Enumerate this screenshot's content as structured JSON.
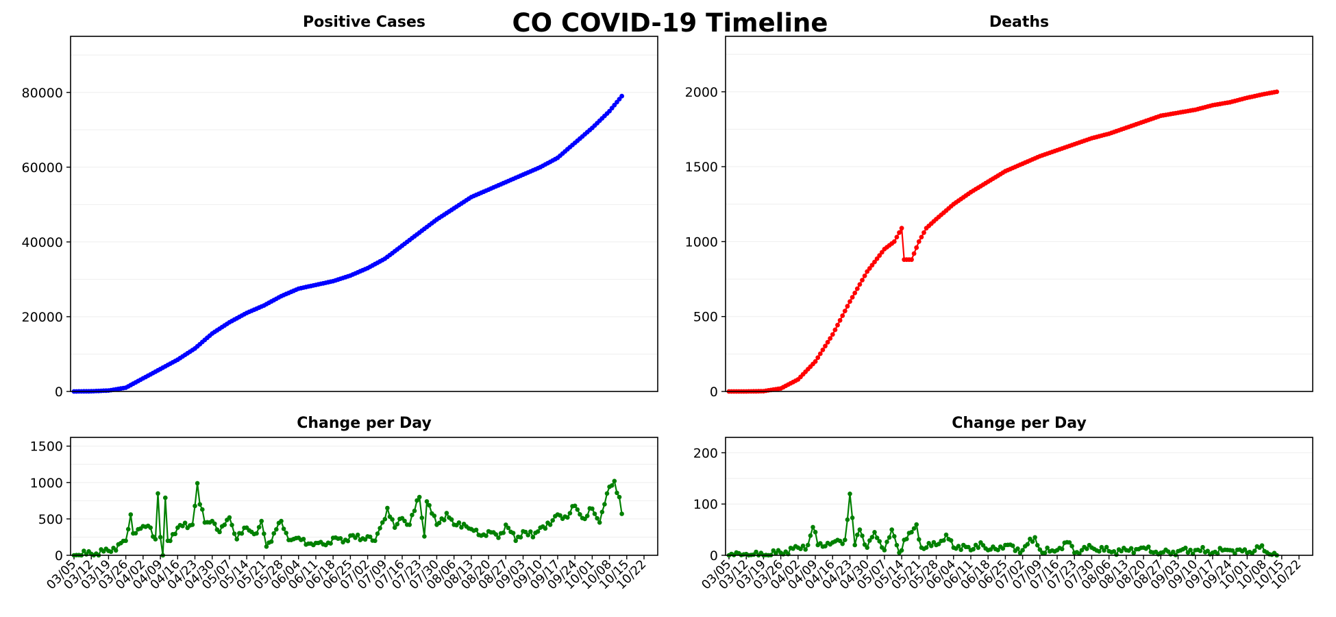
{
  "figure": {
    "title": "CO COVID-19 Timeline"
  },
  "chart_data": [
    {
      "id": "positive_cases",
      "type": "line",
      "title": "Positive Cases",
      "color": "#0000ff",
      "ylim": [
        0,
        95000
      ],
      "yticks": [
        0,
        20000,
        40000,
        60000,
        80000
      ],
      "grid": true,
      "x_start": "03/05",
      "x_end": "10/13",
      "anchors": [
        [
          "03/05",
          0
        ],
        [
          "03/12",
          50
        ],
        [
          "03/19",
          250
        ],
        [
          "03/26",
          1000
        ],
        [
          "04/02",
          3500
        ],
        [
          "04/09",
          6000
        ],
        [
          "04/16",
          8500
        ],
        [
          "04/23",
          11500
        ],
        [
          "04/30",
          15500
        ],
        [
          "05/07",
          18500
        ],
        [
          "05/14",
          21000
        ],
        [
          "05/21",
          23000
        ],
        [
          "05/28",
          25500
        ],
        [
          "06/04",
          27500
        ],
        [
          "06/11",
          28500
        ],
        [
          "06/18",
          29500
        ],
        [
          "06/25",
          31000
        ],
        [
          "07/02",
          33000
        ],
        [
          "07/09",
          35500
        ],
        [
          "07/16",
          39000
        ],
        [
          "07/23",
          42500
        ],
        [
          "07/30",
          46000
        ],
        [
          "08/06",
          49000
        ],
        [
          "08/13",
          52000
        ],
        [
          "08/20",
          54000
        ],
        [
          "08/27",
          56000
        ],
        [
          "09/03",
          58000
        ],
        [
          "09/10",
          60000
        ],
        [
          "09/17",
          62500
        ],
        [
          "09/24",
          66500
        ],
        [
          "10/01",
          70500
        ],
        [
          "10/08",
          75000
        ],
        [
          "10/13",
          79000
        ]
      ]
    },
    {
      "id": "deaths",
      "type": "line",
      "title": "Deaths",
      "color": "#ff0000",
      "ylim": [
        0,
        2370
      ],
      "yticks": [
        0,
        500,
        1000,
        1500,
        2000
      ],
      "grid": true,
      "x_start": "03/05",
      "x_end": "10/13",
      "anchors": [
        [
          "03/05",
          0
        ],
        [
          "03/12",
          0
        ],
        [
          "03/19",
          2
        ],
        [
          "03/26",
          20
        ],
        [
          "04/02",
          80
        ],
        [
          "04/09",
          200
        ],
        [
          "04/16",
          380
        ],
        [
          "04/23",
          600
        ],
        [
          "04/30",
          800
        ],
        [
          "05/07",
          950
        ],
        [
          "05/11",
          1000
        ],
        [
          "05/14",
          1090
        ],
        [
          "05/15",
          880
        ],
        [
          "05/18",
          880
        ],
        [
          "05/21",
          1000
        ],
        [
          "05/24",
          1090
        ],
        [
          "05/28",
          1150
        ],
        [
          "06/04",
          1250
        ],
        [
          "06/11",
          1330
        ],
        [
          "06/18",
          1400
        ],
        [
          "06/25",
          1470
        ],
        [
          "07/02",
          1520
        ],
        [
          "07/09",
          1570
        ],
        [
          "07/16",
          1610
        ],
        [
          "07/23",
          1650
        ],
        [
          "07/30",
          1690
        ],
        [
          "08/06",
          1720
        ],
        [
          "08/13",
          1760
        ],
        [
          "08/20",
          1800
        ],
        [
          "08/27",
          1840
        ],
        [
          "09/03",
          1860
        ],
        [
          "09/10",
          1880
        ],
        [
          "09/17",
          1910
        ],
        [
          "09/24",
          1930
        ],
        [
          "10/01",
          1960
        ],
        [
          "10/08",
          1985
        ],
        [
          "10/13",
          2000
        ]
      ]
    },
    {
      "id": "cases_change_per_day",
      "type": "line",
      "title": "Change per Day",
      "color": "#008000",
      "ylim": [
        0,
        1620
      ],
      "yticks": [
        0,
        500,
        1000,
        1500
      ],
      "grid": true,
      "x_start": "03/05",
      "x_end": "10/13",
      "xticks": [
        "03/05",
        "03/12",
        "03/19",
        "03/26",
        "04/02",
        "04/09",
        "04/16",
        "04/23",
        "04/30",
        "05/07",
        "05/14",
        "05/21",
        "05/28",
        "06/04",
        "06/11",
        "06/18",
        "06/25",
        "07/02",
        "07/09",
        "07/16",
        "07/23",
        "07/30",
        "08/06",
        "08/13",
        "08/20",
        "08/27",
        "09/03",
        "09/10",
        "09/17",
        "09/24",
        "10/01",
        "10/08",
        "10/15",
        "10/22"
      ],
      "anchors": [
        [
          "03/05",
          0
        ],
        [
          "03/12",
          20
        ],
        [
          "03/19",
          60
        ],
        [
          "03/26",
          200
        ],
        [
          "03/28",
          560
        ],
        [
          "03/29",
          300
        ],
        [
          "04/02",
          400
        ],
        [
          "04/05",
          380
        ],
        [
          "04/07",
          220
        ],
        [
          "04/08",
          850
        ],
        [
          "04/09",
          250
        ],
        [
          "04/10",
          0
        ],
        [
          "04/11",
          790
        ],
        [
          "04/12",
          200
        ],
        [
          "04/16",
          380
        ],
        [
          "04/22",
          420
        ],
        [
          "04/24",
          990
        ],
        [
          "04/25",
          700
        ],
        [
          "04/27",
          450
        ],
        [
          "04/30",
          470
        ],
        [
          "05/03",
          320
        ],
        [
          "05/07",
          520
        ],
        [
          "05/10",
          220
        ],
        [
          "05/14",
          380
        ],
        [
          "05/18",
          300
        ],
        [
          "05/20",
          470
        ],
        [
          "05/22",
          120
        ],
        [
          "05/25",
          300
        ],
        [
          "05/28",
          470
        ],
        [
          "05/31",
          210
        ],
        [
          "06/04",
          240
        ],
        [
          "06/08",
          160
        ],
        [
          "06/11",
          170
        ],
        [
          "06/15",
          140
        ],
        [
          "06/18",
          240
        ],
        [
          "06/22",
          180
        ],
        [
          "06/25",
          270
        ],
        [
          "06/29",
          210
        ],
        [
          "07/02",
          260
        ],
        [
          "07/05",
          200
        ],
        [
          "07/08",
          450
        ],
        [
          "07/10",
          650
        ],
        [
          "07/13",
          380
        ],
        [
          "07/16",
          510
        ],
        [
          "07/19",
          420
        ],
        [
          "07/23",
          800
        ],
        [
          "07/25",
          260
        ],
        [
          "07/26",
          740
        ],
        [
          "07/30",
          420
        ],
        [
          "08/03",
          580
        ],
        [
          "08/06",
          420
        ],
        [
          "08/10",
          430
        ],
        [
          "08/13",
          360
        ],
        [
          "08/17",
          270
        ],
        [
          "08/20",
          330
        ],
        [
          "08/24",
          240
        ],
        [
          "08/27",
          420
        ],
        [
          "08/31",
          200
        ],
        [
          "09/03",
          330
        ],
        [
          "09/07",
          250
        ],
        [
          "09/10",
          380
        ],
        [
          "09/14",
          420
        ],
        [
          "09/17",
          560
        ],
        [
          "09/21",
          520
        ],
        [
          "09/24",
          680
        ],
        [
          "09/28",
          500
        ],
        [
          "10/01",
          640
        ],
        [
          "10/04",
          450
        ],
        [
          "10/07",
          850
        ],
        [
          "10/10",
          1020
        ],
        [
          "10/12",
          800
        ],
        [
          "10/13",
          570
        ]
      ]
    },
    {
      "id": "deaths_change_per_day",
      "type": "line",
      "title": "Change per Day",
      "color": "#008000",
      "ylim": [
        0,
        230
      ],
      "yticks": [
        0,
        100,
        200
      ],
      "grid": true,
      "x_start": "03/05",
      "x_end": "10/13",
      "xticks": [
        "03/05",
        "03/12",
        "03/19",
        "03/26",
        "04/02",
        "04/09",
        "04/16",
        "04/23",
        "04/30",
        "05/07",
        "05/14",
        "05/21",
        "05/28",
        "06/04",
        "06/11",
        "06/18",
        "06/25",
        "07/02",
        "07/09",
        "07/16",
        "07/23",
        "07/30",
        "08/06",
        "08/13",
        "08/20",
        "08/27",
        "09/03",
        "09/10",
        "09/17",
        "09/24",
        "10/01",
        "10/08",
        "10/15",
        "10/22"
      ],
      "anchors": [
        [
          "03/05",
          0
        ],
        [
          "03/19",
          0
        ],
        [
          "03/26",
          5
        ],
        [
          "04/02",
          15
        ],
        [
          "04/06",
          20
        ],
        [
          "04/08",
          55
        ],
        [
          "04/10",
          20
        ],
        [
          "04/16",
          25
        ],
        [
          "04/21",
          30
        ],
        [
          "04/23",
          120
        ],
        [
          "04/25",
          20
        ],
        [
          "04/27",
          50
        ],
        [
          "04/30",
          15
        ],
        [
          "05/03",
          45
        ],
        [
          "05/07",
          10
        ],
        [
          "05/10",
          50
        ],
        [
          "05/13",
          5
        ],
        [
          "05/15",
          30
        ],
        [
          "05/18",
          45
        ],
        [
          "05/20",
          60
        ],
        [
          "05/22",
          15
        ],
        [
          "05/28",
          20
        ],
        [
          "06/01",
          40
        ],
        [
          "06/04",
          15
        ],
        [
          "06/08",
          20
        ],
        [
          "06/11",
          10
        ],
        [
          "06/15",
          25
        ],
        [
          "06/18",
          10
        ],
        [
          "06/25",
          20
        ],
        [
          "07/02",
          10
        ],
        [
          "07/07",
          35
        ],
        [
          "07/10",
          5
        ],
        [
          "07/16",
          10
        ],
        [
          "07/21",
          25
        ],
        [
          "07/23",
          5
        ],
        [
          "07/30",
          15
        ],
        [
          "08/06",
          8
        ],
        [
          "08/13",
          10
        ],
        [
          "08/20",
          15
        ],
        [
          "08/27",
          5
        ],
        [
          "09/03",
          8
        ],
        [
          "09/10",
          10
        ],
        [
          "09/17",
          5
        ],
        [
          "09/24",
          10
        ],
        [
          "10/01",
          5
        ],
        [
          "10/06",
          15
        ],
        [
          "10/08",
          8
        ],
        [
          "10/13",
          0
        ]
      ]
    }
  ]
}
